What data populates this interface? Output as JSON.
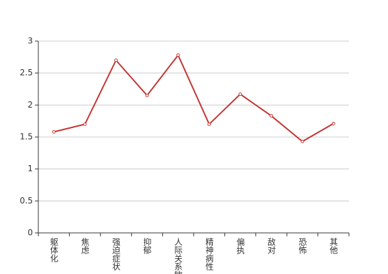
{
  "chart_data": {
    "type": "line",
    "categories": [
      "躯体化",
      "焦虑",
      "强迫症状",
      "抑郁",
      "人际关系敏感",
      "精神病性",
      "偏执",
      "敌对",
      "恐怖",
      "其他"
    ],
    "values": [
      1.58,
      1.7,
      2.7,
      2.15,
      2.78,
      1.7,
      2.17,
      1.83,
      1.43,
      1.71
    ],
    "color": "#c23531",
    "ylim": [
      0,
      3
    ],
    "yticks": [
      0,
      0.5,
      1,
      1.5,
      2,
      2.5,
      3
    ],
    "grid": true
  }
}
